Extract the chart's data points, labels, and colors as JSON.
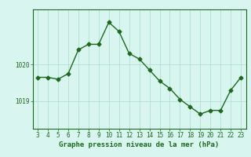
{
  "x": [
    3,
    4,
    5,
    6,
    7,
    8,
    9,
    10,
    11,
    12,
    13,
    14,
    15,
    16,
    17,
    18,
    19,
    20,
    21,
    22,
    23
  ],
  "y": [
    1019.65,
    1019.65,
    1019.6,
    1019.75,
    1020.4,
    1020.55,
    1020.55,
    1021.15,
    1020.9,
    1020.3,
    1020.15,
    1019.85,
    1019.55,
    1019.35,
    1019.05,
    1018.85,
    1018.65,
    1018.75,
    1018.75,
    1019.3,
    1019.65
  ],
  "line_color": "#1a6b1a",
  "marker": "D",
  "markersize": 2.5,
  "linewidth": 1.0,
  "bg_color": "#d8f5f0",
  "grid_color": "#aaddcc",
  "xlabel": "Graphe pression niveau de la mer (hPa)",
  "xlabel_color": "#1a6b1a",
  "xlabel_fontsize": 6.5,
  "tick_color": "#1a6b1a",
  "tick_fontsize": 5.5,
  "ytick_labels": [
    1019,
    1020
  ],
  "xlim": [
    2.5,
    23.5
  ],
  "ylim": [
    1018.25,
    1021.5
  ]
}
